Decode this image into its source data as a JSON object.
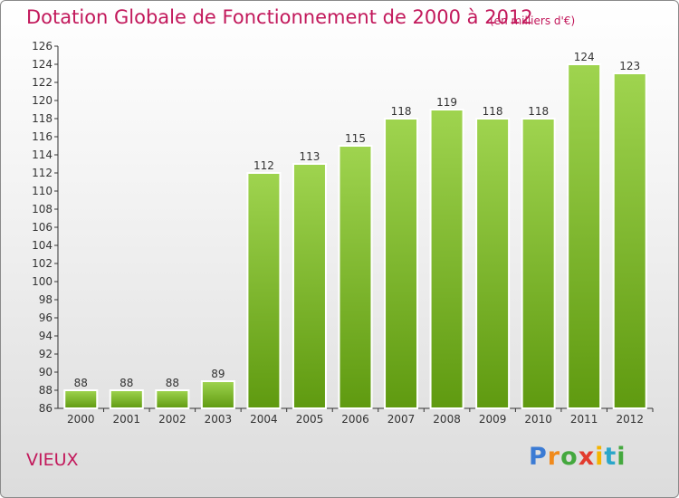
{
  "header": {
    "title": "Dotation Globale de Fonctionnement de 2000 à 2012",
    "unit": "(en milliers d'€)"
  },
  "footer": {
    "place": "VIEUX",
    "logo": "Proxiti"
  },
  "colors": {
    "title": "#c2185b",
    "bar_light": "#9fd44f",
    "bar_dark": "#5f9a10",
    "axis": "#333333"
  },
  "chart_data": {
    "type": "bar",
    "title": "Dotation Globale de Fonctionnement de 2000 à 2012",
    "subtitle": "(en milliers d'€)",
    "xlabel": "",
    "ylabel": "",
    "categories": [
      "2000",
      "2001",
      "2002",
      "2003",
      "2004",
      "2005",
      "2006",
      "2007",
      "2008",
      "2009",
      "2010",
      "2011",
      "2012"
    ],
    "values": [
      88,
      88,
      88,
      89,
      112,
      113,
      115,
      118,
      119,
      118,
      118,
      124,
      123
    ],
    "ylim": [
      86,
      126
    ],
    "ytick_step": 2,
    "grid": false,
    "data_labels": true
  }
}
